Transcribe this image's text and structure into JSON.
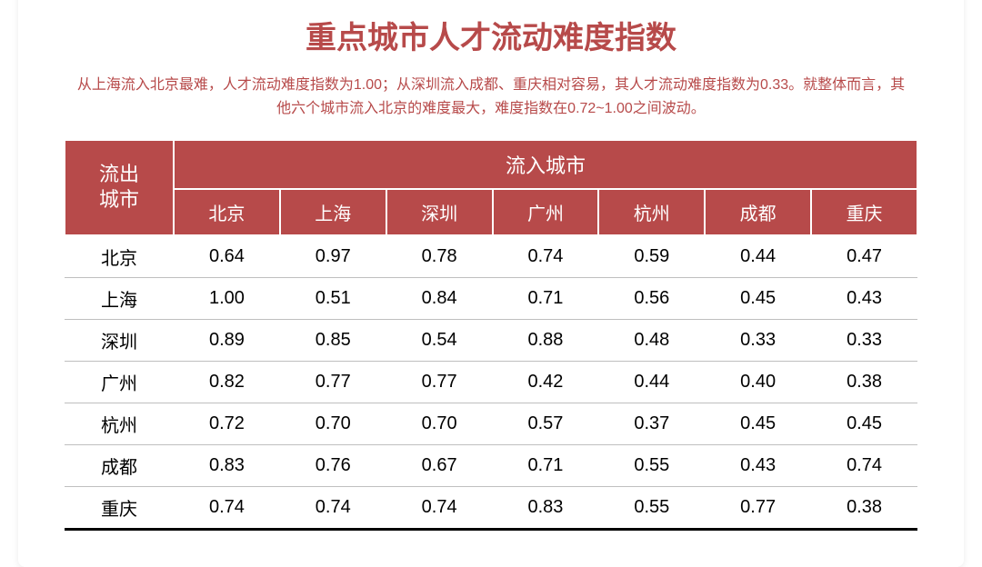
{
  "title": "重点城市人才流动难度指数",
  "subtitle": "从上海流入北京最难，人才流动难度指数为1.00；从深圳流入成都、重庆相对容易，其人才流动难度指数为0.33。就整体而言，其他六个城市流入北京的难度最大，难度指数在0.72~1.00之间波动。",
  "colors": {
    "accent": "#b74a4a",
    "header_bg": "#b74a4a",
    "title_color": "#b74a4a",
    "subtitle_color": "#b74a4a",
    "row_border": "#bfbfbf",
    "header_border": "#ffffff"
  },
  "table": {
    "type": "table",
    "row_axis_label": "流出\n城市",
    "col_axis_label": "流入城市",
    "columns": [
      "北京",
      "上海",
      "深圳",
      "广州",
      "杭州",
      "成都",
      "重庆"
    ],
    "row_labels": [
      "北京",
      "上海",
      "深圳",
      "广州",
      "杭州",
      "成都",
      "重庆"
    ],
    "rows": [
      [
        "0.64",
        "0.97",
        "0.78",
        "0.74",
        "0.59",
        "0.44",
        "0.47"
      ],
      [
        "1.00",
        "0.51",
        "0.84",
        "0.71",
        "0.56",
        "0.45",
        "0.43"
      ],
      [
        "0.89",
        "0.85",
        "0.54",
        "0.88",
        "0.48",
        "0.33",
        "0.33"
      ],
      [
        "0.82",
        "0.77",
        "0.77",
        "0.42",
        "0.44",
        "0.40",
        "0.38"
      ],
      [
        "0.72",
        "0.70",
        "0.70",
        "0.57",
        "0.37",
        "0.45",
        "0.45"
      ],
      [
        "0.83",
        "0.76",
        "0.67",
        "0.71",
        "0.55",
        "0.43",
        "0.74"
      ],
      [
        "0.74",
        "0.74",
        "0.74",
        "0.83",
        "0.55",
        "0.77",
        "0.38"
      ]
    ],
    "header_fontsize": 22,
    "cell_fontsize": 20,
    "row_border_color": "#bfbfbf",
    "last_row_border_color": "#000000"
  }
}
